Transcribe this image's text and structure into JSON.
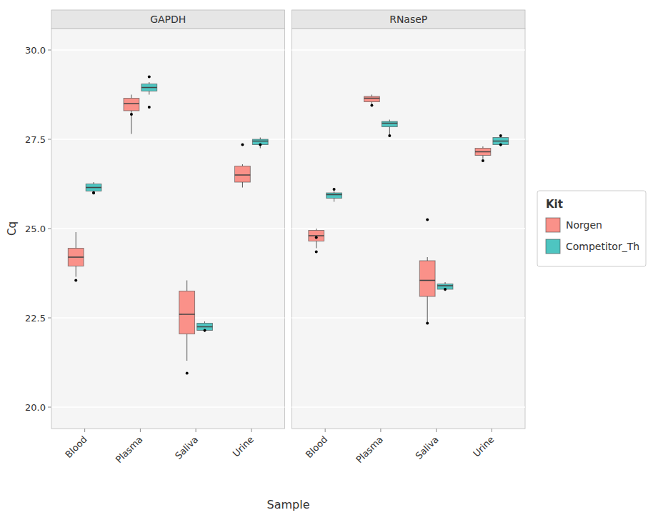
{
  "chart_data": {
    "type": "box",
    "x_label": "Sample",
    "y_label": "Cq",
    "legend_title": "Kit",
    "legend": "right",
    "grid": true,
    "categories": [
      "Blood",
      "Plasma",
      "Saliva",
      "Urine"
    ],
    "ylim": [
      19.4,
      30.6
    ],
    "yticks": [
      {
        "value": 20,
        "label": "20.0"
      },
      22.5,
      {
        "value": 25,
        "label": "25.0"
      },
      27.5,
      {
        "value": 30,
        "label": "30.0"
      }
    ],
    "series": [
      {
        "name": "Norgen",
        "color": "#FA9189"
      },
      {
        "name": "Competitor_Th",
        "color": "#4EC5C1"
      }
    ],
    "panels": [
      {
        "title": "GAPDH",
        "series": [
          {
            "values": [
              {
                "q1": 23.95,
                "median": 24.2,
                "q3": 24.45,
                "whislo": 23.65,
                "whishi": 24.9,
                "fliers": [
                  23.55
                ]
              },
              {
                "q1": 28.3,
                "median": 28.5,
                "q3": 28.65,
                "whislo": 27.65,
                "whishi": 28.75,
                "fliers": [
                  28.2
                ]
              },
              {
                "q1": 22.05,
                "median": 22.6,
                "q3": 23.25,
                "whislo": 21.3,
                "whishi": 23.55,
                "fliers": [
                  20.95
                ]
              },
              {
                "q1": 26.3,
                "median": 26.5,
                "q3": 26.75,
                "whislo": 26.15,
                "whishi": 26.8,
                "fliers": [
                  27.35
                ]
              }
            ]
          },
          {
            "values": [
              {
                "q1": 26.05,
                "median": 26.15,
                "q3": 26.25,
                "whislo": 25.95,
                "whishi": 26.3,
                "fliers": [
                  26.0,
                  26.0
                ]
              },
              {
                "q1": 28.85,
                "median": 28.95,
                "q3": 29.05,
                "whislo": 28.75,
                "whishi": 29.1,
                "fliers": [
                  28.4,
                  29.25
                ]
              },
              {
                "q1": 22.15,
                "median": 22.25,
                "q3": 22.35,
                "whislo": 22.1,
                "whishi": 22.4,
                "fliers": [
                  22.15
                ]
              },
              {
                "q1": 27.35,
                "median": 27.45,
                "q3": 27.5,
                "whislo": 27.25,
                "whishi": 27.55,
                "fliers": [
                  27.35
                ]
              }
            ]
          }
        ]
      },
      {
        "title": "RNaseP",
        "series": [
          {
            "values": [
              {
                "q1": 24.65,
                "median": 24.8,
                "q3": 24.95,
                "whislo": 24.45,
                "whishi": 25.0,
                "fliers": [
                  24.35,
                  24.75
                ]
              },
              {
                "q1": 28.55,
                "median": 28.65,
                "q3": 28.7,
                "whislo": 28.45,
                "whishi": 28.75,
                "fliers": [
                  28.45
                ]
              },
              {
                "q1": 23.1,
                "median": 23.55,
                "q3": 24.1,
                "whislo": 22.35,
                "whishi": 24.2,
                "fliers": [
                  22.35,
                  25.25
                ]
              },
              {
                "q1": 27.05,
                "median": 27.15,
                "q3": 27.25,
                "whislo": 26.95,
                "whishi": 27.3,
                "fliers": [
                  26.9
                ]
              }
            ]
          },
          {
            "values": [
              {
                "q1": 25.85,
                "median": 25.95,
                "q3": 26.0,
                "whislo": 25.75,
                "whishi": 26.05,
                "fliers": [
                  26.1
                ]
              },
              {
                "q1": 27.85,
                "median": 27.95,
                "q3": 28.0,
                "whislo": 27.6,
                "whishi": 28.05,
                "fliers": [
                  27.6
                ]
              },
              {
                "q1": 23.3,
                "median": 23.4,
                "q3": 23.45,
                "whislo": 23.25,
                "whishi": 23.5,
                "fliers": [
                  23.3
                ]
              },
              {
                "q1": 27.35,
                "median": 27.45,
                "q3": 27.55,
                "whislo": 27.3,
                "whishi": 27.6,
                "fliers": [
                  27.35,
                  27.6
                ]
              }
            ]
          }
        ]
      }
    ]
  }
}
